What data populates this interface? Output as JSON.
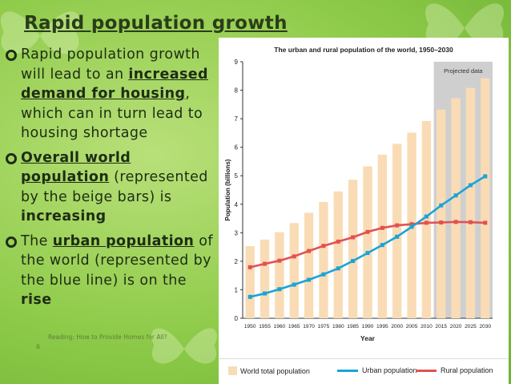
{
  "slide": {
    "title": "Rapid population growth",
    "bullets": [
      {
        "parts": [
          {
            "text": "Rapid population growth will lead to an ",
            "style": "plain"
          },
          {
            "text": "increased demand for housing",
            "style": "em"
          },
          {
            "text": ", which can in turn lead to housing shortage",
            "style": "plain"
          }
        ]
      },
      {
        "parts": [
          {
            "text": "Overall world population",
            "style": "em"
          },
          {
            "text": " (represented by the beige bars) is ",
            "style": "plain"
          },
          {
            "text": "increasing",
            "style": "b"
          }
        ]
      },
      {
        "parts": [
          {
            "text": "The ",
            "style": "plain"
          },
          {
            "text": "urban population",
            "style": "em"
          },
          {
            "text": " of the world (represented by the blue line) is on the ",
            "style": "plain"
          },
          {
            "text": "rise",
            "style": "b"
          }
        ]
      }
    ],
    "footer": "Reading: How to Provide Homes for All?",
    "slide_number": "6"
  },
  "colors": {
    "bars": "#f9dcb5",
    "projected_band": "#cfcfcf",
    "urban": "#1aa3d9",
    "rural": "#e05252",
    "title_text": "#2a3d1a"
  },
  "chart_data": {
    "type": "bar",
    "title": "The urban and rural population of the world, 1950–2030",
    "ylabel": "Population (billions)",
    "xlabel": "Year",
    "ylim": [
      0,
      9
    ],
    "yticks": [
      "0",
      "1",
      "2",
      "3",
      "4",
      "5",
      "6",
      "7",
      "8",
      "9"
    ],
    "annotation": "Projected data",
    "projected_categories": [
      "2015",
      "2020",
      "2025",
      "2030"
    ],
    "categories": [
      "1950",
      "1955",
      "1960",
      "1965",
      "1970",
      "1975",
      "1980",
      "1985",
      "1990",
      "1995",
      "2000",
      "2005",
      "2010",
      "2015",
      "2020",
      "2025",
      "2030"
    ],
    "series": [
      {
        "name": "World total population",
        "kind": "bar",
        "values": [
          2.53,
          2.76,
          3.02,
          3.34,
          3.7,
          4.08,
          4.45,
          4.86,
          5.33,
          5.74,
          6.12,
          6.51,
          6.92,
          7.32,
          7.72,
          8.08,
          8.42
        ]
      },
      {
        "name": "Urban population",
        "kind": "line",
        "values": [
          0.75,
          0.87,
          1.02,
          1.18,
          1.35,
          1.54,
          1.75,
          2.01,
          2.29,
          2.57,
          2.86,
          3.21,
          3.57,
          3.96,
          4.31,
          4.67,
          4.98
        ]
      },
      {
        "name": "Rural population",
        "kind": "line",
        "values": [
          1.79,
          1.91,
          2.02,
          2.17,
          2.36,
          2.54,
          2.69,
          2.84,
          3.03,
          3.17,
          3.26,
          3.3,
          3.35,
          3.36,
          3.38,
          3.37,
          3.35
        ]
      }
    ],
    "legend": [
      "World total population",
      "Urban population",
      "Rural population"
    ]
  }
}
